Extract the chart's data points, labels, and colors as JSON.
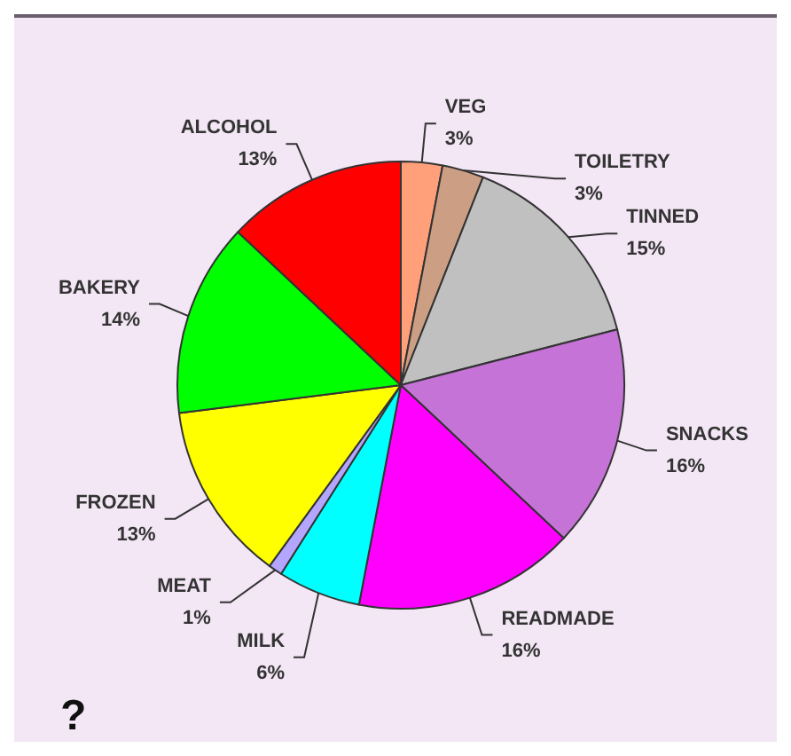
{
  "chart_data": {
    "type": "pie",
    "categories": [
      "VEG",
      "TOILETRY",
      "TINNED",
      "SNACKS",
      "READMADE",
      "MILK",
      "MEAT",
      "FROZEN",
      "BAKERY",
      "ALCOHOL"
    ],
    "values": [
      3,
      3,
      15,
      16,
      16,
      6,
      1,
      13,
      14,
      13
    ],
    "value_labels": [
      "3%",
      "3%",
      "15%",
      "16%",
      "16%",
      "6%",
      "1%",
      "13%",
      "14%",
      "13%"
    ],
    "colors": [
      "#ffa07a",
      "#cc9f85",
      "#c0c0c0",
      "#c673d8",
      "#ff00ff",
      "#00ffff",
      "#b4a6ff",
      "#ffff00",
      "#00ff00",
      "#ff0000"
    ],
    "legend": false,
    "annotations": [
      "?"
    ]
  }
}
